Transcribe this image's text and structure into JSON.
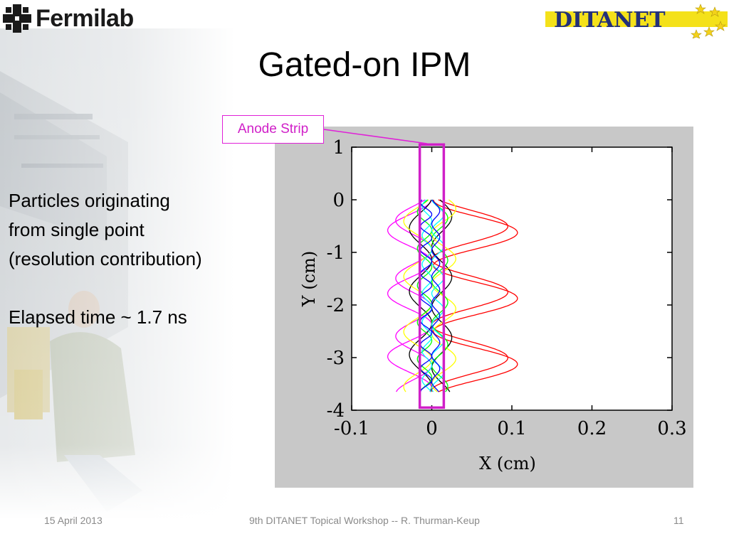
{
  "header": {
    "fermilab_logo_text": "Fermilab",
    "ditanet_logo_text": "DITANET"
  },
  "slide": {
    "title": "Gated-on IPM",
    "body": {
      "line1": "Particles originating",
      "line2": "from single point",
      "line3": "(resolution contribution)",
      "line4": "Elapsed time ~ 1.7 ns"
    },
    "callout_label": "Anode Strip"
  },
  "footer": {
    "date": "15 April 2013",
    "center": "9th DITANET Topical Workshop    --    R. Thurman-Keup",
    "page": "11"
  },
  "colors": {
    "callout": "#e020d8",
    "strip": "#d020c8",
    "figure_background": "#c8c8c8",
    "trajectories": [
      "#ff0000",
      "#ff00ff",
      "#000000",
      "#ffff00",
      "#00ff00",
      "#00ffff",
      "#0000ff"
    ]
  },
  "chart_data": {
    "type": "line",
    "title": "",
    "xlabel": "X (cm)",
    "ylabel": "Y (cm)",
    "xlim": [
      -0.1,
      0.3
    ],
    "ylim": [
      -4,
      1
    ],
    "xticks": [
      -0.1,
      0,
      0.1,
      0.2,
      0.3
    ],
    "xtick_labels": [
      "-0.1",
      "0",
      "0.1",
      "0.2",
      "0.3"
    ],
    "yticks": [
      1,
      0,
      -1,
      -2,
      -3,
      -4
    ],
    "ytick_labels": [
      "1",
      "0",
      "-1",
      "-2",
      "-3",
      "-4"
    ],
    "grid": false,
    "legend": "none",
    "y_range_of_tracks": [
      0,
      -3.65
    ],
    "anode_strip": {
      "x_range": [
        -0.015,
        0.015
      ],
      "y_range": [
        -3.95,
        1.05
      ]
    },
    "series": [
      {
        "color": "#ff0000",
        "amplitude": 0.105,
        "offset": 0.002,
        "period": 1.25,
        "phase": 0.0
      },
      {
        "color": "#ff0000",
        "amplitude": 0.095,
        "offset": 0.0,
        "period": 1.25,
        "phase": 0.6
      },
      {
        "color": "#ff00ff",
        "amplitude": -0.055,
        "offset": 0.0,
        "period": 1.2,
        "phase": 0.1
      },
      {
        "color": "#ff00ff",
        "amplitude": -0.045,
        "offset": 0.0,
        "period": 1.1,
        "phase": 0.9
      },
      {
        "color": "#000000",
        "amplitude": -0.028,
        "offset": 0.0,
        "period": 1.2,
        "phase": 0.3
      },
      {
        "color": "#000000",
        "amplitude": 0.025,
        "offset": 0.0,
        "period": 1.15,
        "phase": 1.4
      },
      {
        "color": "#ffff00",
        "amplitude": -0.035,
        "offset": 0.0,
        "period": 1.05,
        "phase": 0.7
      },
      {
        "color": "#ffff00",
        "amplitude": 0.03,
        "offset": 0.0,
        "period": 0.95,
        "phase": 2.0
      },
      {
        "color": "#00ff00",
        "amplitude": 0.02,
        "offset": 0.0,
        "period": 0.8,
        "phase": 0.4
      },
      {
        "color": "#00ff00",
        "amplitude": -0.018,
        "offset": 0.0,
        "period": 0.7,
        "phase": 1.1
      },
      {
        "color": "#00ffff",
        "amplitude": 0.015,
        "offset": 0.0,
        "period": 0.6,
        "phase": 0.2
      },
      {
        "color": "#00ffff",
        "amplitude": -0.012,
        "offset": 0.0,
        "period": 0.55,
        "phase": 1.7
      },
      {
        "color": "#0000ff",
        "amplitude": 0.01,
        "offset": 0.0,
        "period": 0.5,
        "phase": 0.5
      },
      {
        "color": "#0000ff",
        "amplitude": -0.014,
        "offset": 0.0,
        "period": 0.45,
        "phase": 2.4
      }
    ]
  }
}
